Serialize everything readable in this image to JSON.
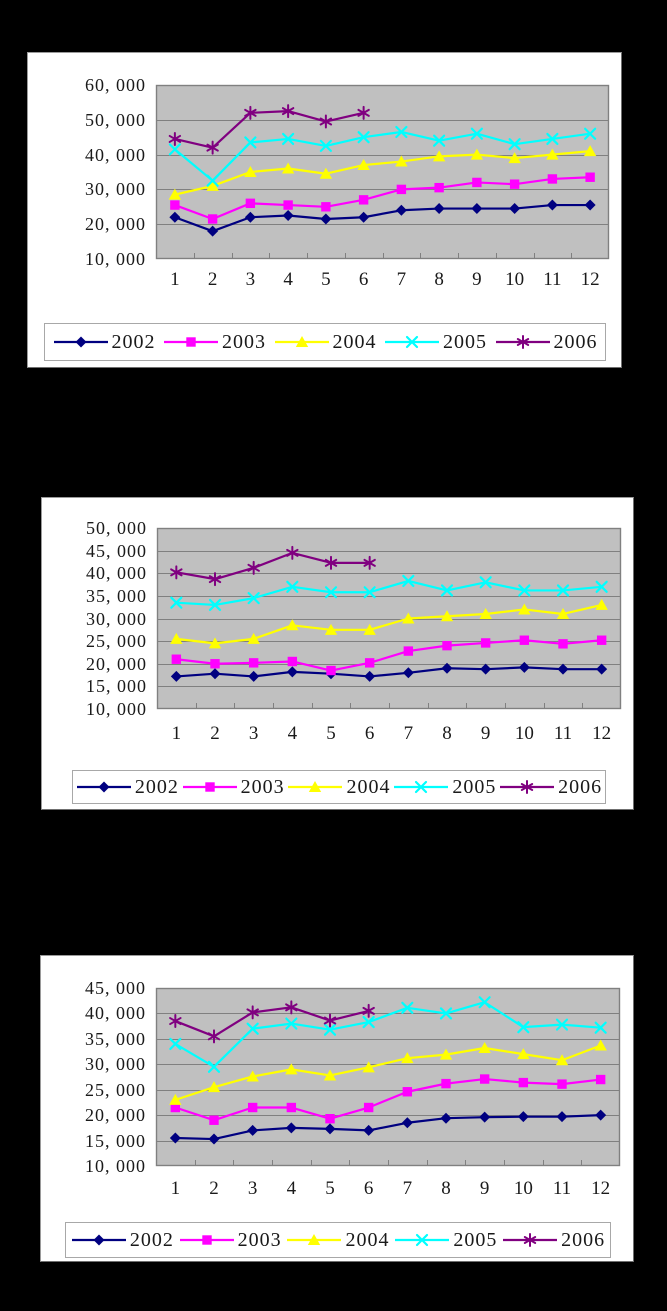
{
  "page": {
    "background_color": "#000000",
    "panel_color": "#FFFFFF",
    "plot_background_color": "#C0C0C0",
    "gridline_color": "#808080",
    "text_color": "#1a1a1a"
  },
  "chart_data": [
    {
      "type": "line",
      "title": "",
      "xlabel": "",
      "ylabel": "",
      "ylim": [
        10000,
        60000
      ],
      "ytick_step": 10000,
      "ytick_labels_top_to_bottom": [
        "60, 000",
        "50, 000",
        "40, 000",
        "30, 000",
        "20, 000",
        "10, 000"
      ],
      "categories": [
        "1",
        "2",
        "3",
        "4",
        "5",
        "6",
        "7",
        "8",
        "9",
        "10",
        "11",
        "12"
      ],
      "grid": true,
      "legend_position": "bottom",
      "series": [
        {
          "name": "2002",
          "color": "#000080",
          "marker": "diamond",
          "values": [
            22000,
            18000,
            22000,
            22500,
            21500,
            22000,
            24000,
            24500,
            24500,
            24500,
            25500,
            25500
          ]
        },
        {
          "name": "2003",
          "color": "#FF00FF",
          "marker": "square",
          "values": [
            25500,
            21500,
            26000,
            25500,
            25000,
            27000,
            30000,
            30500,
            32000,
            31500,
            33000,
            33500
          ]
        },
        {
          "name": "2004",
          "color": "#FFFF00",
          "marker": "triangle",
          "values": [
            28500,
            31000,
            35000,
            36000,
            34500,
            37000,
            38000,
            39500,
            40000,
            39000,
            40000,
            41000
          ]
        },
        {
          "name": "2005",
          "color": "#00FFFF",
          "marker": "x",
          "values": [
            41500,
            32500,
            43500,
            44500,
            42500,
            45000,
            46500,
            44000,
            46000,
            43000,
            44500,
            46000
          ]
        },
        {
          "name": "2006",
          "color": "#800080",
          "marker": "asterisk",
          "values": [
            44500,
            42000,
            52000,
            52500,
            49500,
            52000
          ]
        }
      ]
    },
    {
      "type": "line",
      "title": "",
      "xlabel": "",
      "ylabel": "",
      "ylim": [
        10000,
        50000
      ],
      "ytick_step": 5000,
      "ytick_labels_top_to_bottom": [
        "50, 000",
        "45, 000",
        "40, 000",
        "35, 000",
        "30, 000",
        "25, 000",
        "20, 000",
        "15, 000",
        "10, 000"
      ],
      "categories": [
        "1",
        "2",
        "3",
        "4",
        "5",
        "6",
        "7",
        "8",
        "9",
        "10",
        "11",
        "12"
      ],
      "grid": true,
      "legend_position": "bottom",
      "series": [
        {
          "name": "2002",
          "color": "#000080",
          "marker": "diamond",
          "values": [
            17200,
            17800,
            17200,
            18200,
            17800,
            17200,
            18000,
            19000,
            18800,
            19200,
            18800,
            18800
          ]
        },
        {
          "name": "2003",
          "color": "#FF00FF",
          "marker": "square",
          "values": [
            21000,
            20000,
            20200,
            20500,
            18500,
            20200,
            22800,
            24000,
            24600,
            25200,
            24400,
            25200
          ]
        },
        {
          "name": "2004",
          "color": "#FFFF00",
          "marker": "triangle",
          "values": [
            25500,
            24500,
            25500,
            28500,
            27500,
            27500,
            30000,
            30500,
            31000,
            32000,
            31000,
            33000
          ]
        },
        {
          "name": "2005",
          "color": "#00FFFF",
          "marker": "x",
          "values": [
            33500,
            33000,
            34500,
            37000,
            35800,
            35800,
            38300,
            36200,
            38000,
            36200,
            36200,
            37000
          ]
        },
        {
          "name": "2006",
          "color": "#800080",
          "marker": "asterisk",
          "values": [
            40200,
            38700,
            41200,
            44500,
            42300,
            42300
          ]
        }
      ]
    },
    {
      "type": "line",
      "title": "",
      "xlabel": "",
      "ylabel": "",
      "ylim": [
        10000,
        45000
      ],
      "ytick_step": 5000,
      "ytick_labels_top_to_bottom": [
        "45, 000",
        "40, 000",
        "35, 000",
        "30, 000",
        "25, 000",
        "20, 000",
        "15, 000",
        "10, 000"
      ],
      "categories": [
        "1",
        "2",
        "3",
        "4",
        "5",
        "6",
        "7",
        "8",
        "9",
        "10",
        "11",
        "12"
      ],
      "grid": true,
      "legend_position": "bottom",
      "series": [
        {
          "name": "2002",
          "color": "#000080",
          "marker": "diamond",
          "values": [
            15500,
            15300,
            17000,
            17500,
            17300,
            17000,
            18500,
            19400,
            19600,
            19700,
            19700,
            20000
          ]
        },
        {
          "name": "2003",
          "color": "#FF00FF",
          "marker": "square",
          "values": [
            21500,
            19000,
            21500,
            21500,
            19300,
            21500,
            24600,
            26200,
            27100,
            26400,
            26100,
            27000
          ]
        },
        {
          "name": "2004",
          "color": "#FFFF00",
          "marker": "triangle",
          "values": [
            23000,
            25500,
            27600,
            29000,
            27800,
            29400,
            31200,
            31900,
            33200,
            32000,
            30800,
            33700
          ]
        },
        {
          "name": "2005",
          "color": "#00FFFF",
          "marker": "x",
          "values": [
            34000,
            29500,
            37000,
            38000,
            36800,
            38300,
            41100,
            40000,
            42200,
            37300,
            37800,
            37200
          ]
        },
        {
          "name": "2006",
          "color": "#800080",
          "marker": "asterisk",
          "values": [
            38500,
            35500,
            40200,
            41200,
            38600,
            40500
          ]
        }
      ]
    }
  ]
}
